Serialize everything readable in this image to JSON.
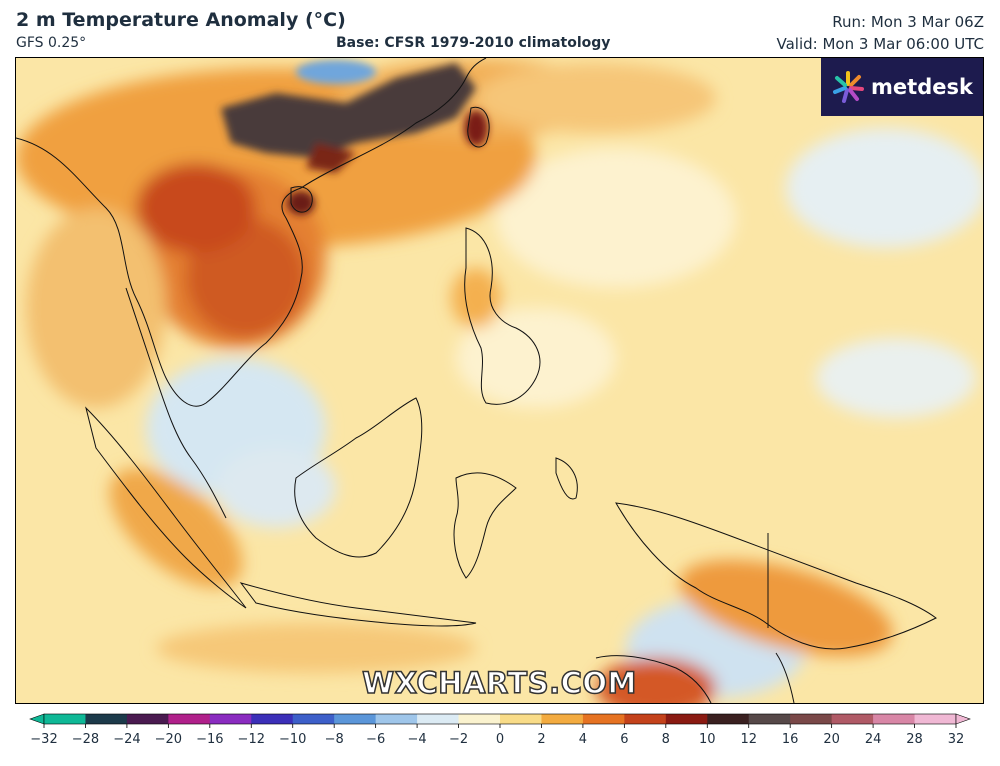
{
  "header": {
    "title": "2 m Temperature Anomaly (°C)",
    "model": "GFS 0.25°",
    "base": "Base: CFSR 1979-2010 climatology",
    "run": "Run: Mon 3 Mar 06Z",
    "valid": "Valid: Mon 3 Mar 06:00 UTC"
  },
  "logo": {
    "text": "metdesk",
    "icon": "metdesk-burst-icon",
    "color": "#1d1b4e"
  },
  "watermark": "WXCHARTS.COM",
  "colorbar": {
    "ticks": [
      "−32",
      "−28",
      "−24",
      "−20",
      "−16",
      "−12",
      "−10",
      "−8",
      "−6",
      "−4",
      "−2",
      "0",
      "2",
      "4",
      "6",
      "8",
      "10",
      "12",
      "16",
      "20",
      "24",
      "28",
      "32"
    ],
    "stops": [
      "#0fb896",
      "#1c3a4a",
      "#4a1a50",
      "#b0208a",
      "#8a2cc0",
      "#3b2fb8",
      "#3d5fc9",
      "#5b96d9",
      "#9fc6ea",
      "#dcebf4",
      "#fbf3cf",
      "#f9dc88",
      "#f3ab40",
      "#e67322",
      "#c4421b",
      "#8a1a12",
      "#3a2020",
      "#564848",
      "#7a4848",
      "#b05a66",
      "#d886a6",
      "#f0b8d4"
    ]
  }
}
